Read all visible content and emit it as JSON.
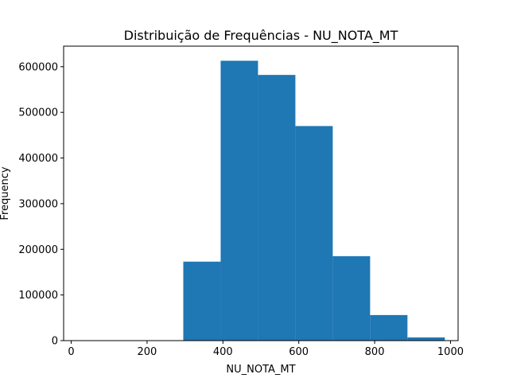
{
  "chart_data": {
    "type": "bar",
    "title": "Distribuição de Frequências - NU_NOTA_MT",
    "xlabel": "NU_NOTA_MT",
    "ylabel": "Frequency",
    "xlim": [
      -20,
      1020
    ],
    "ylim": [
      0,
      645000
    ],
    "xticks": [
      0,
      200,
      400,
      600,
      800,
      1000
    ],
    "yticks": [
      0,
      100000,
      200000,
      300000,
      400000,
      500000,
      600000
    ],
    "bins": [
      {
        "x0": 0,
        "x1": 98.5,
        "count": 0
      },
      {
        "x0": 98.5,
        "x1": 197,
        "count": 0
      },
      {
        "x0": 197,
        "x1": 295.5,
        "count": 0
      },
      {
        "x0": 295.5,
        "x1": 394,
        "count": 173000
      },
      {
        "x0": 394,
        "x1": 492.5,
        "count": 613000
      },
      {
        "x0": 492.5,
        "x1": 591,
        "count": 582000
      },
      {
        "x0": 591,
        "x1": 689.5,
        "count": 470000
      },
      {
        "x0": 689.5,
        "x1": 788,
        "count": 185000
      },
      {
        "x0": 788,
        "x1": 886.5,
        "count": 56000
      },
      {
        "x0": 886.5,
        "x1": 985,
        "count": 7000
      }
    ],
    "colors": {
      "bar": "#1f77b4"
    },
    "grid": false,
    "legend": "none"
  }
}
